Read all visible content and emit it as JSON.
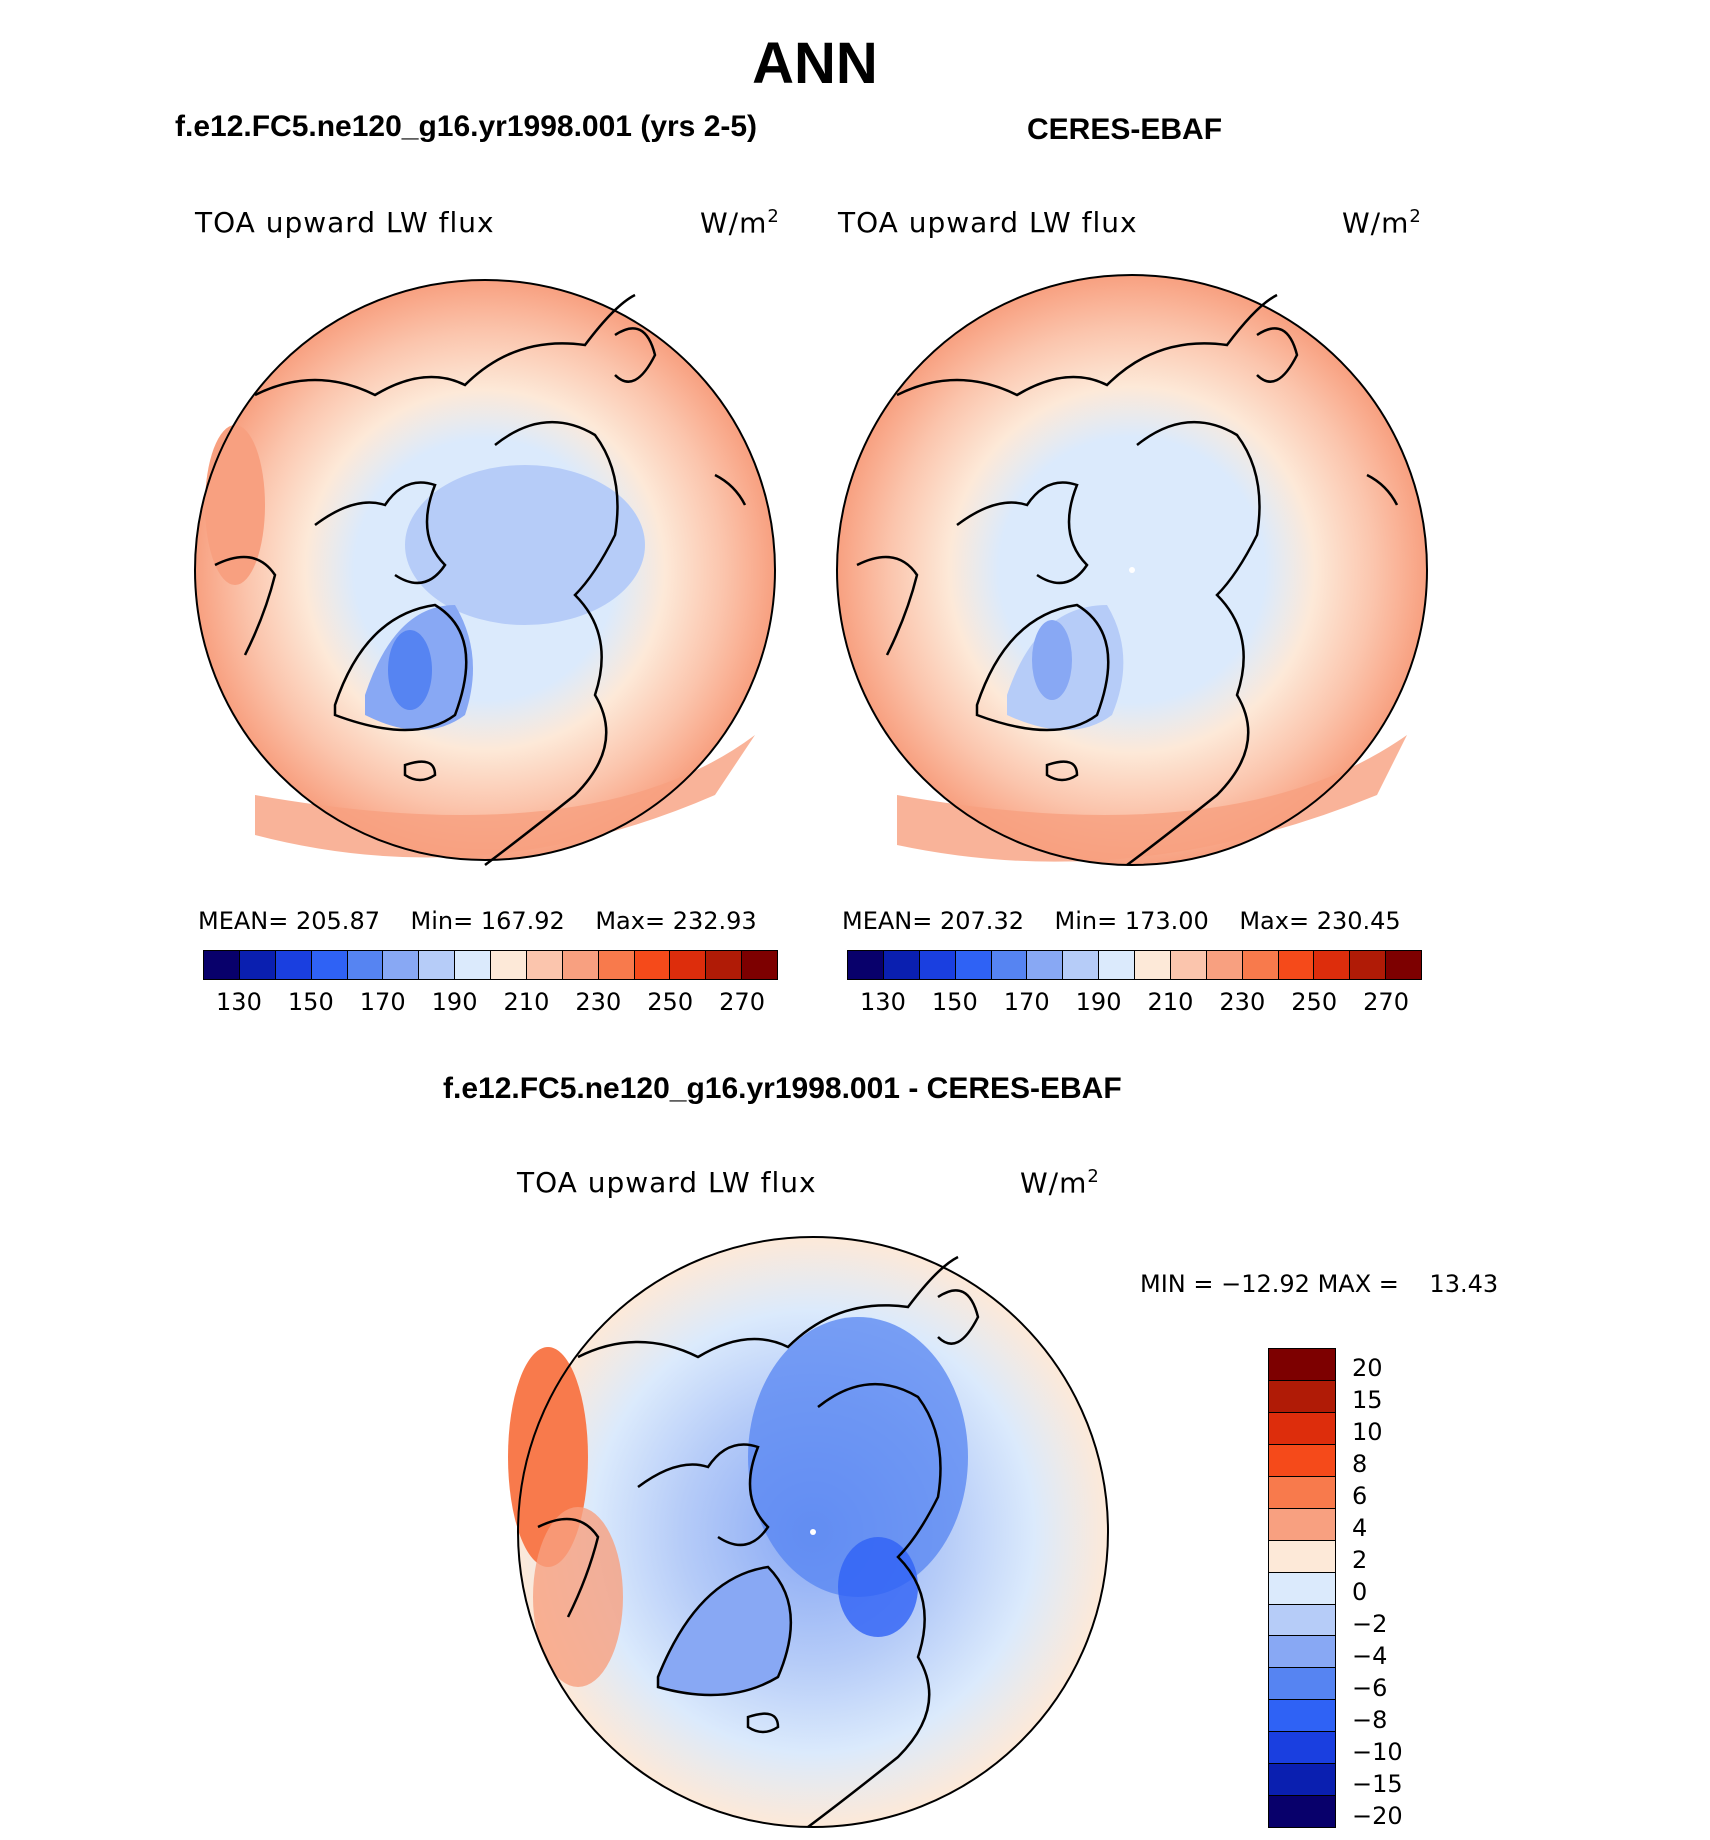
{
  "title": "ANN",
  "panels": {
    "model": {
      "case_title": "f.e12.FC5.ne120_g16.yr1998.001 (yrs 2-5)",
      "variable": "TOA upward LW flux",
      "units": "W/m",
      "units_exp": "2",
      "stats": {
        "mean_label": "MEAN=",
        "mean": "205.87",
        "min_label": "Min=",
        "min": "167.92",
        "max_label": "Max=",
        "max": "232.93"
      }
    },
    "obs": {
      "case_title": "CERES-EBAF",
      "variable": "TOA upward LW flux",
      "units": "W/m",
      "units_exp": "2",
      "stats": {
        "mean_label": "MEAN=",
        "mean": "207.32",
        "min_label": "Min=",
        "min": "173.00",
        "max_label": "Max=",
        "max": "230.45"
      }
    },
    "diff": {
      "case_title": "f.e12.FC5.ne120_g16.yr1998.001 - CERES-EBAF",
      "variable": "TOA upward LW flux",
      "units": "W/m",
      "units_exp": "2",
      "stats": {
        "min_label": "MIN =",
        "min": "−12.92",
        "max_label": "MAX =",
        "max": "13.43"
      }
    }
  },
  "colorbar_abs": {
    "colors": [
      "#08006b",
      "#0a1fb0",
      "#1a3fe0",
      "#2f62f5",
      "#5684f2",
      "#88a8f4",
      "#b6ccf8",
      "#dbeafc",
      "#fde9d8",
      "#fbc5ad",
      "#f8a080",
      "#f87a4c",
      "#f54a1a",
      "#dd2d0c",
      "#b01b06",
      "#7d0000"
    ],
    "tick_labels": [
      "130",
      "150",
      "170",
      "190",
      "210",
      "230",
      "250",
      "270"
    ]
  },
  "colorbar_diff": {
    "colors": [
      "#7d0000",
      "#b01b06",
      "#dd2d0c",
      "#f54a1a",
      "#f87a4c",
      "#f8a080",
      "#fde9d8",
      "#dbeafc",
      "#b6ccf8",
      "#88a8f4",
      "#5684f2",
      "#2f62f5",
      "#1a3fe0",
      "#0a1fb0",
      "#08006b"
    ],
    "tick_labels": [
      "20",
      "15",
      "10",
      "8",
      "6",
      "4",
      "2",
      "0",
      "−2",
      "−4",
      "−6",
      "−8",
      "−10",
      "−15",
      "−20"
    ]
  }
}
